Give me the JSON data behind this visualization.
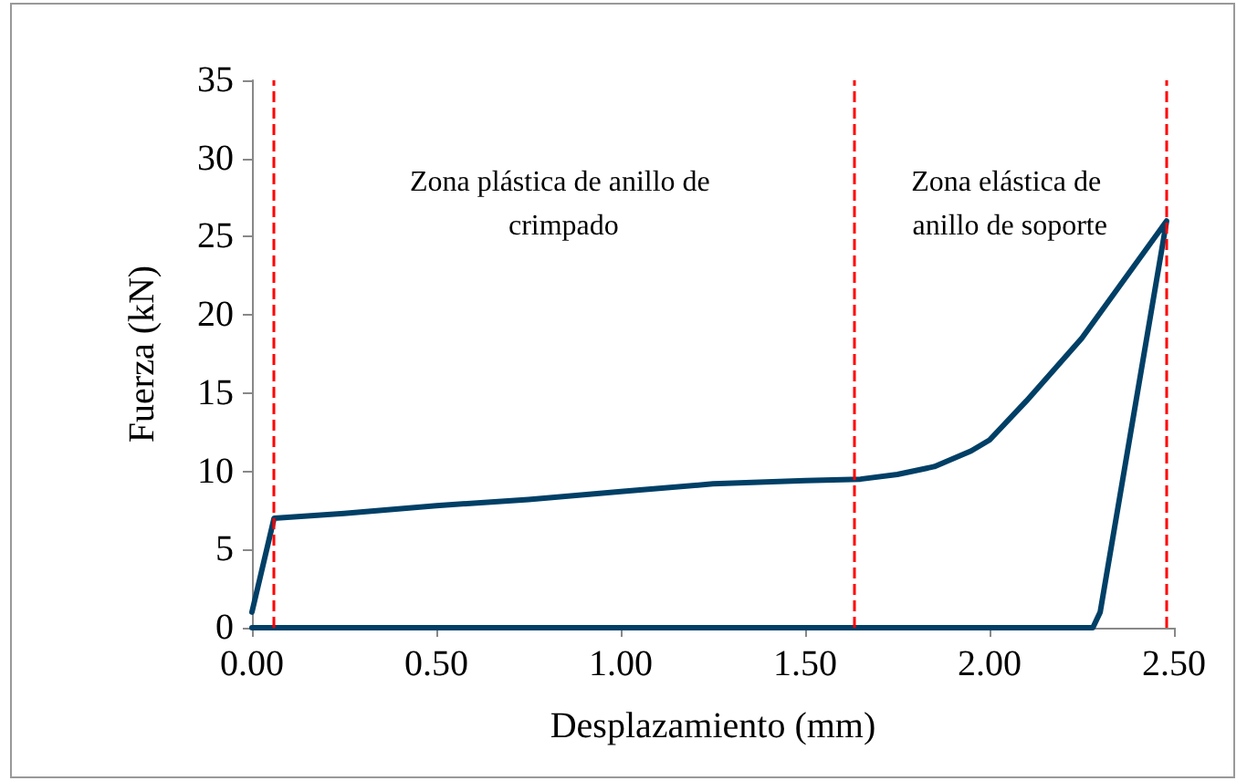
{
  "chart_data": {
    "type": "line",
    "xlabel": "Desplazamiento (mm)",
    "ylabel": "Fuerza (kN)",
    "x": [
      0,
      0.06,
      0.25,
      0.5,
      0.75,
      1,
      1.25,
      1.5,
      1.65,
      1.75,
      1.85,
      1.95,
      2.0,
      2.1,
      2.25,
      2.48,
      2.3,
      2.28,
      1.5,
      0.5,
      0
    ],
    "series": [
      {
        "color": "#003f66",
        "values": [
          1,
          7,
          7.3,
          7.8,
          8.2,
          8.7,
          9.2,
          9.4,
          9.5,
          9.8,
          10.3,
          11.3,
          12,
          14.5,
          18.5,
          26,
          1,
          0,
          0,
          0,
          0
        ]
      }
    ],
    "xlim": [
      0,
      2.5
    ],
    "xticks": [
      {
        "value": 0,
        "label": "0.00"
      },
      {
        "value": 0.5,
        "label": "0.50"
      },
      {
        "value": 1,
        "label": "1.00"
      },
      {
        "value": 1.5,
        "label": "1.50"
      },
      {
        "value": 2,
        "label": "2.00"
      },
      {
        "value": 2.5,
        "label": "2.50"
      }
    ],
    "ylim": [
      0,
      35
    ],
    "yticks": [
      0,
      5,
      10,
      15,
      20,
      25,
      30,
      35
    ],
    "ref_lines": [
      {
        "axis": "x",
        "value": 0.06,
        "color": "#ff0000",
        "line_style": "dashed"
      },
      {
        "axis": "x",
        "value": 1.63,
        "color": "#ff0000",
        "line_style": "dashed"
      },
      {
        "axis": "x",
        "value": 2.48,
        "color": "#ff0000",
        "line_style": "dashed"
      }
    ],
    "annotations": [
      "Zona plástica de anillo de crimpado",
      "Zona elástica de anillo de soporte"
    ],
    "grid": false,
    "marker": "none",
    "line_style": "solid"
  }
}
